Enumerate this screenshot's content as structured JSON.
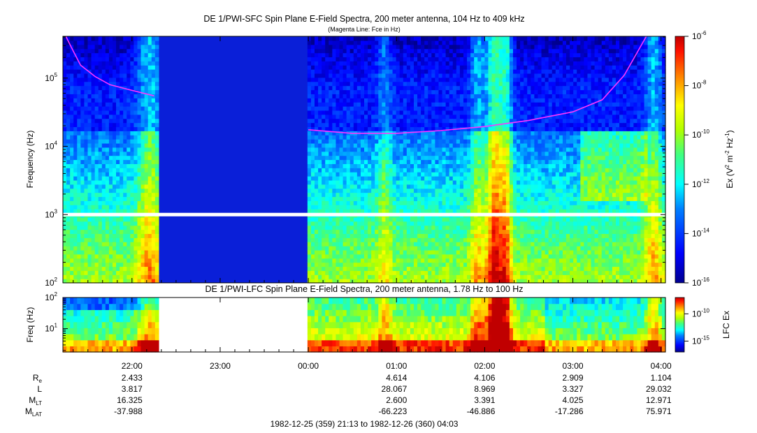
{
  "chart_data": [
    {
      "type": "heatmap",
      "title": "DE 1/PWI-SFC  Spin Plane E-Field Spectra, 200 meter antenna, 104 Hz to 409 kHz",
      "subtitle": "(Magenta Line: Fce in Hz)",
      "ylabel": "Frequency (Hz)",
      "yscale": "log",
      "ylim": [
        100,
        409000
      ],
      "yticks": [
        {
          "value": 100,
          "mant": "10",
          "exp": "2"
        },
        {
          "value": 1000,
          "mant": "10",
          "exp": "3"
        },
        {
          "value": 10000,
          "mant": "10",
          "exp": "4"
        },
        {
          "value": 100000,
          "mant": "10",
          "exp": "5"
        }
      ],
      "colorbar": {
        "label_main": "Ex (V",
        "label_sup1": "2",
        "label_mid": " m",
        "label_sup2": "-2",
        "label_mid2": " Hz",
        "label_sup3": "-1",
        "label_end": ")",
        "scale": "log",
        "range": [
          1e-16,
          1e-06
        ],
        "ticks": [
          {
            "mant": "10",
            "exp": "-6",
            "value": 1e-06
          },
          {
            "mant": "10",
            "exp": "-8",
            "value": 1e-08
          },
          {
            "mant": "10",
            "exp": "-10",
            "value": 1e-10
          },
          {
            "mant": "10",
            "exp": "-12",
            "value": 1e-12
          },
          {
            "mant": "10",
            "exp": "-14",
            "value": 1e-14
          },
          {
            "mant": "10",
            "exp": "-16",
            "value": 1e-16
          }
        ]
      },
      "fce_line_color": "#ff33ff",
      "fce_line": {
        "segment1": [
          [
            "21:15",
            409000
          ],
          [
            "21:20",
            250000
          ],
          [
            "21:25",
            155000
          ],
          [
            "21:35",
            105000
          ],
          [
            "21:45",
            80000
          ],
          [
            "22:00",
            66000
          ],
          [
            "22:15",
            55000
          ]
        ],
        "segment2": [
          [
            "00:00",
            17500
          ],
          [
            "00:30",
            15500
          ],
          [
            "01:00",
            15500
          ],
          [
            "01:30",
            17000
          ],
          [
            "02:00",
            19500
          ],
          [
            "02:30",
            24000
          ],
          [
            "03:00",
            32000
          ],
          [
            "03:20",
            48000
          ],
          [
            "03:35",
            110000
          ],
          [
            "03:50",
            409000
          ]
        ]
      },
      "data_gap": [
        "22:17",
        "00:00"
      ],
      "gap_band_hz": 1000
    },
    {
      "type": "heatmap",
      "title": "DE 1/PWI-LFC  Spin Plane E-Field Spectra, 200 meter antenna, 1.78 Hz to 100 Hz",
      "ylabel": "Freq (Hz)",
      "yscale": "log",
      "ylim": [
        1.78,
        100
      ],
      "yticks": [
        {
          "value": 10,
          "mant": "10",
          "exp": "1"
        },
        {
          "value": 100,
          "mant": "10",
          "exp": "2"
        }
      ],
      "colorbar": {
        "label": "LFC Ex",
        "scale": "log",
        "range": [
          1e-17,
          1e-07
        ],
        "ticks": [
          {
            "mant": "10",
            "exp": "-10",
            "value": 1e-10
          },
          {
            "mant": "10",
            "exp": "-15",
            "value": 1e-15
          }
        ]
      },
      "data_gap": [
        "22:17",
        "00:00"
      ]
    }
  ],
  "time_axis": {
    "start": "21:13",
    "end": "04:03",
    "ticks": [
      "22:00",
      "23:00",
      "00:00",
      "01:00",
      "02:00",
      "03:00",
      "04:00"
    ]
  },
  "ephemeris": {
    "labels": [
      {
        "main": "R",
        "sub": "e"
      },
      {
        "main": "L",
        "sub": ""
      },
      {
        "main": "M",
        "sub": "LT"
      },
      {
        "main": "M",
        "sub": "LAT"
      }
    ],
    "columns": [
      {
        "time": "22:00",
        "values": [
          "2.433",
          "3.817",
          "16.325",
          "-37.988"
        ]
      },
      {
        "time": "23:00",
        "values": [
          "",
          "",
          "",
          ""
        ]
      },
      {
        "time": "00:00",
        "values": [
          "",
          "",
          "",
          ""
        ]
      },
      {
        "time": "01:00",
        "values": [
          "4.614",
          "28.067",
          "2.600",
          "-66.223"
        ]
      },
      {
        "time": "02:00",
        "values": [
          "4.106",
          "8.969",
          "3.391",
          "-46.886"
        ]
      },
      {
        "time": "03:00",
        "values": [
          "2.909",
          "3.327",
          "4.025",
          "-17.286"
        ]
      },
      {
        "time": "04:00",
        "values": [
          "1.104",
          "29.032",
          "12.971",
          "75.971"
        ]
      }
    ]
  },
  "footer": "1982-12-25 (359) 21:13 to 1982-12-26 (360) 04:03"
}
